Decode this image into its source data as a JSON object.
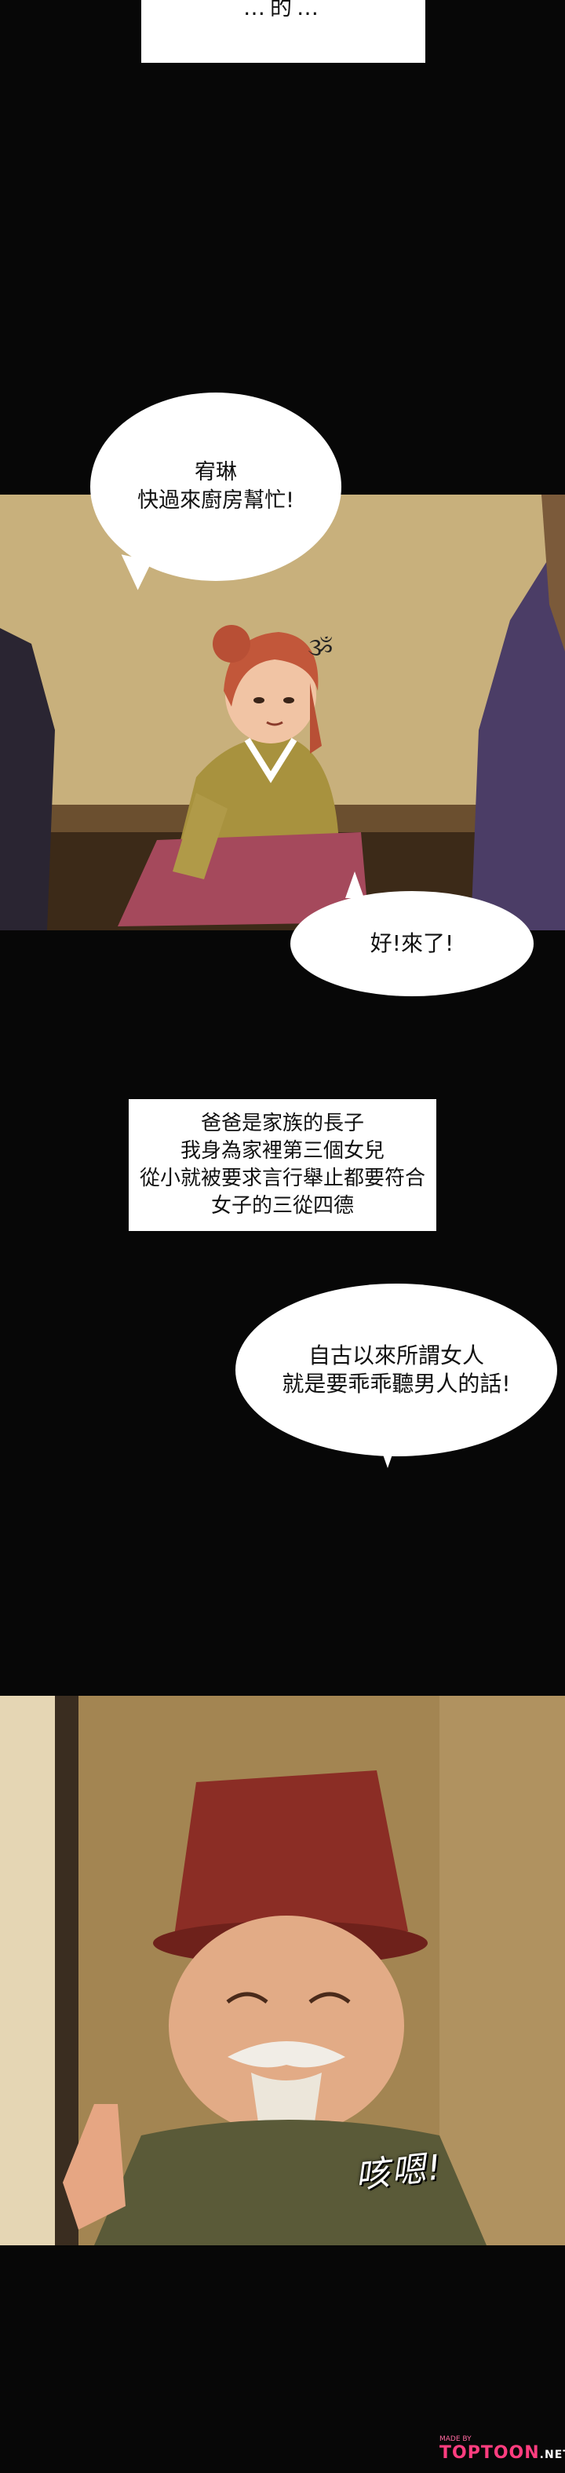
{
  "captions": {
    "top_partial": "…的…",
    "narration_lines": [
      "爸爸是家族的長子",
      "我身為家裡第三個女兒",
      "從小就被要求言行舉止都要符合",
      "女子的三從四德"
    ]
  },
  "bubbles": {
    "b1_lines": [
      "宥琳",
      "快過來廚房幫忙!"
    ],
    "b2_lines": [
      "好!來了!"
    ],
    "b3_lines": [
      "自古以來所謂女人",
      "就是要乖乖聽男人的話!"
    ]
  },
  "sfx": {
    "ahem": "咳嗯!",
    "dizzy": "ૐ"
  },
  "watermark": {
    "made_by": "MADE BY",
    "brand": "TOPTOON",
    "suffix": ".NET"
  },
  "colors": {
    "background": "#070707",
    "bubble": "#ffffff",
    "brand_pink": "#ff3d7f"
  }
}
